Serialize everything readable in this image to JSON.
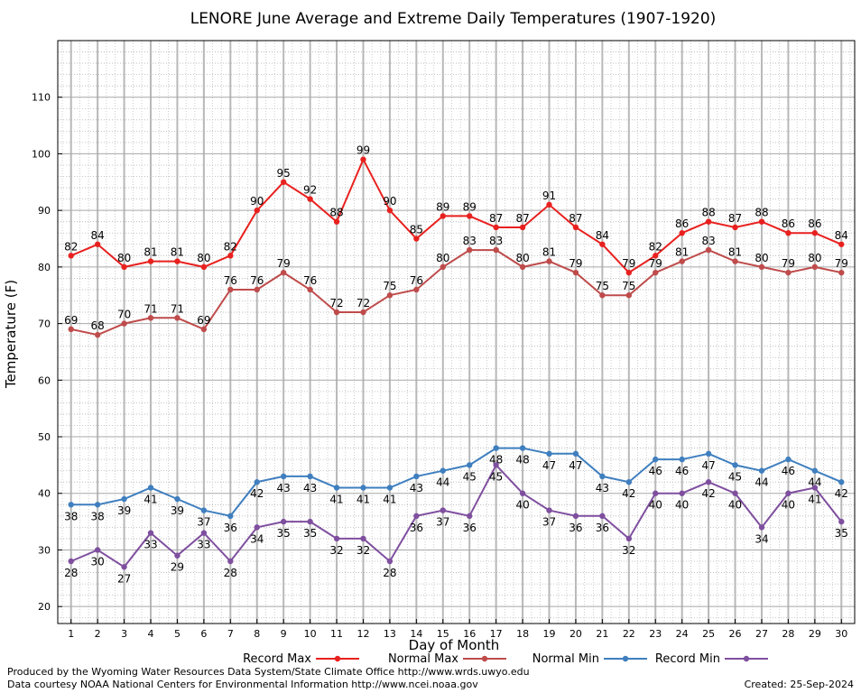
{
  "chart_data": {
    "type": "line",
    "title": "LENORE June Average and Extreme Daily Temperatures (1907-1920)",
    "xlabel": "Day of Month",
    "ylabel": "Temperature (F)",
    "x": [
      1,
      2,
      3,
      4,
      5,
      6,
      7,
      8,
      9,
      10,
      11,
      12,
      13,
      14,
      15,
      16,
      17,
      18,
      19,
      20,
      21,
      22,
      23,
      24,
      25,
      26,
      27,
      28,
      29,
      30
    ],
    "xlim": [
      0.5,
      30.5
    ],
    "ylim": [
      17,
      120
    ],
    "yticks": [
      20,
      30,
      40,
      50,
      60,
      70,
      80,
      90,
      100,
      110
    ],
    "grid": true,
    "legend_position": "bottom",
    "series": [
      {
        "name": "Record Max",
        "color": "#e8211f",
        "label_position": "above",
        "values": [
          82,
          84,
          80,
          81,
          81,
          80,
          82,
          90,
          95,
          92,
          88,
          99,
          90,
          85,
          89,
          89,
          87,
          87,
          91,
          87,
          84,
          79,
          82,
          86,
          88,
          87,
          88,
          86,
          86,
          84
        ]
      },
      {
        "name": "Normal Max",
        "color": "#bf4b4b",
        "label_position": "above",
        "values": [
          69,
          68,
          70,
          71,
          71,
          69,
          76,
          76,
          79,
          76,
          72,
          72,
          75,
          76,
          80,
          83,
          83,
          80,
          81,
          79,
          75,
          75,
          79,
          81,
          83,
          81,
          80,
          79,
          80,
          79
        ]
      },
      {
        "name": "Normal Min",
        "color": "#3f7fbf",
        "label_position": "below",
        "values": [
          38,
          38,
          39,
          41,
          39,
          37,
          36,
          42,
          43,
          43,
          41,
          41,
          41,
          43,
          44,
          45,
          48,
          48,
          47,
          47,
          43,
          42,
          46,
          46,
          47,
          45,
          44,
          46,
          44,
          42
        ]
      },
      {
        "name": "Record Min",
        "color": "#7f4f9f",
        "label_position": "below",
        "values": [
          28,
          30,
          27,
          33,
          29,
          33,
          28,
          34,
          35,
          35,
          32,
          32,
          28,
          36,
          37,
          36,
          45,
          40,
          37,
          36,
          36,
          32,
          40,
          40,
          42,
          40,
          34,
          40,
          41,
          35
        ]
      }
    ]
  },
  "footer": {
    "produced_by": "Produced by the Wyoming Water Resources Data System/State Climate Office http://www.wrds.uwyo.edu",
    "data_courtesy": "Data courtesy NOAA National Centers for Environmental Information http://www.ncei.noaa.gov",
    "created": "Created:  25-Sep-2024"
  }
}
